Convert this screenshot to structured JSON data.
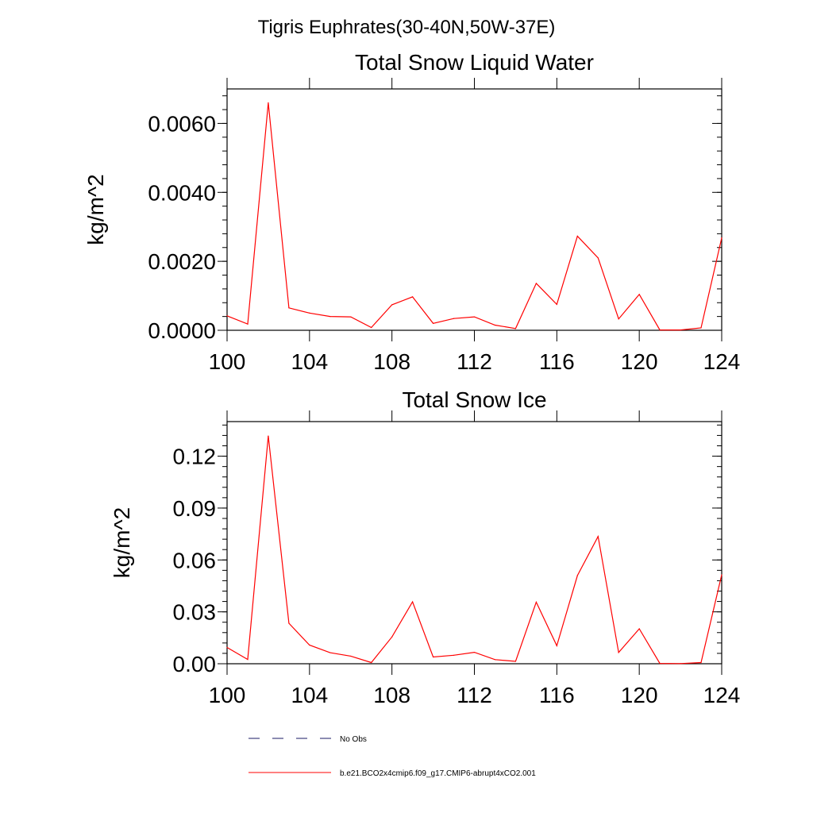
{
  "figure": {
    "suptitle": "Tigris Euphrates(30-40N,50W-37E)"
  },
  "chart_data": [
    {
      "type": "line",
      "title": "Total Snow Liquid Water",
      "xlabel": "",
      "ylabel": "kg/m^2",
      "xlim": [
        100,
        124
      ],
      "ylim": [
        0.0,
        0.007
      ],
      "x_ticks": [
        100,
        104,
        108,
        112,
        116,
        120,
        124
      ],
      "x_tick_labels": [
        "100",
        "104",
        "108",
        "112",
        "116",
        "120",
        "124"
      ],
      "y_ticks": [
        0.0,
        0.002,
        0.004,
        0.006
      ],
      "y_tick_labels": [
        "0.0000",
        "0.0020",
        "0.0040",
        "0.0060"
      ],
      "grid": false,
      "series": [
        {
          "name": "b.e21.BCO2x4cmip6.f09_g17.CMIP6-abrupt4xCO2.001",
          "color": "#ff0000",
          "x": [
            100,
            101,
            102,
            103,
            104,
            105,
            106,
            107,
            108,
            109,
            110,
            111,
            112,
            113,
            114,
            115,
            116,
            117,
            118,
            119,
            120,
            121,
            122,
            123,
            124
          ],
          "values": [
            0.00042,
            0.00018,
            0.0066,
            0.00065,
            0.0005,
            0.0004,
            0.00039,
            8e-05,
            0.00074,
            0.00097,
            0.0002,
            0.00034,
            0.00039,
            0.00015,
            5e-05,
            0.00136,
            0.00075,
            0.00273,
            0.0021,
            0.00033,
            0.00104,
            1e-05,
            1e-05,
            7e-05,
            0.00268
          ]
        }
      ]
    },
    {
      "type": "line",
      "title": "Total Snow Ice",
      "xlabel": "",
      "ylabel": "kg/m^2",
      "xlim": [
        100,
        124
      ],
      "ylim": [
        0.0,
        0.14
      ],
      "x_ticks": [
        100,
        104,
        108,
        112,
        116,
        120,
        124
      ],
      "x_tick_labels": [
        "100",
        "104",
        "108",
        "112",
        "116",
        "120",
        "124"
      ],
      "y_ticks": [
        0.0,
        0.03,
        0.06,
        0.09,
        0.12
      ],
      "y_tick_labels": [
        "0.00",
        "0.03",
        "0.06",
        "0.09",
        "0.12"
      ],
      "grid": false,
      "series": [
        {
          "name": "b.e21.BCO2x4cmip6.f09_g17.CMIP6-abrupt4xCO2.001",
          "color": "#ff0000",
          "x": [
            100,
            101,
            102,
            103,
            104,
            105,
            106,
            107,
            108,
            109,
            110,
            111,
            112,
            113,
            114,
            115,
            116,
            117,
            118,
            119,
            120,
            121,
            122,
            123,
            124
          ],
          "values": [
            0.0094,
            0.0025,
            0.1317,
            0.0234,
            0.0108,
            0.0064,
            0.0044,
            0.0007,
            0.0155,
            0.0358,
            0.0039,
            0.0049,
            0.0066,
            0.0024,
            0.0014,
            0.0356,
            0.0104,
            0.051,
            0.0736,
            0.0065,
            0.0202,
            0.0002,
            0.0001,
            0.0007,
            0.0514
          ]
        }
      ]
    }
  ],
  "legend": {
    "entries": [
      {
        "label": "No Obs",
        "color": "#1a1a66",
        "style": "dashed"
      },
      {
        "label": "b.e21.BCO2x4cmip6.f09_g17.CMIP6-abrupt4xCO2.001",
        "color": "#ff0000",
        "style": "solid"
      }
    ]
  }
}
